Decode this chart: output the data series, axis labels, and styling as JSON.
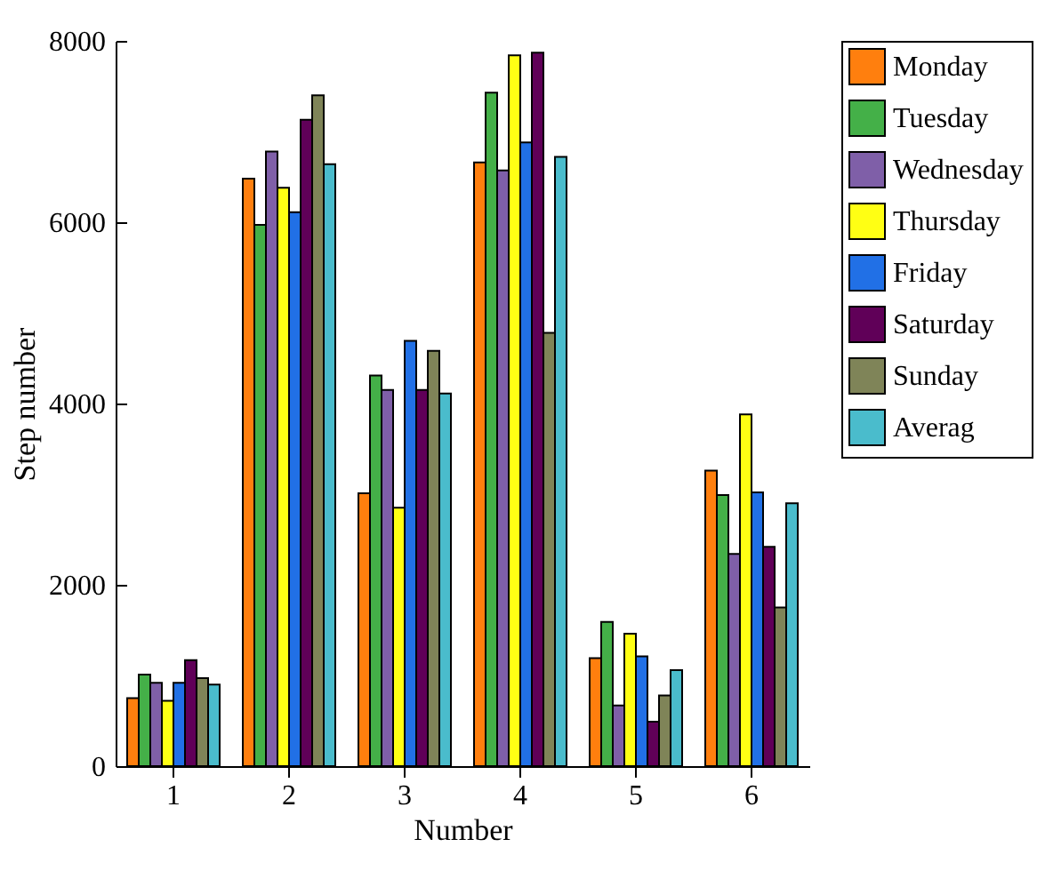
{
  "chart_data": {
    "type": "bar",
    "xlabel": "Number",
    "ylabel": "Step number",
    "categories": [
      "1",
      "2",
      "3",
      "4",
      "5",
      "6"
    ],
    "ylim": [
      0,
      8000
    ],
    "yticks": [
      0,
      2000,
      4000,
      6000,
      8000
    ],
    "grid": false,
    "legend": "right",
    "series": [
      {
        "name": "Monday",
        "color": "#ff7f0e",
        "values": [
          750,
          6480,
          3010,
          6660,
          1190,
          3260
        ]
      },
      {
        "name": "Tuesday",
        "color": "#44b048",
        "values": [
          1010,
          5970,
          4310,
          7430,
          1590,
          2990
        ]
      },
      {
        "name": "Wednesday",
        "color": "#7f5fa8",
        "values": [
          920,
          6780,
          4150,
          6570,
          670,
          2340
        ]
      },
      {
        "name": "Thursday",
        "color": "#ffff14",
        "values": [
          720,
          6380,
          2850,
          7840,
          1460,
          3880
        ]
      },
      {
        "name": "Friday",
        "color": "#2170e6",
        "values": [
          920,
          6110,
          4690,
          6880,
          1210,
          3020
        ]
      },
      {
        "name": "Saturday",
        "color": "#600058",
        "values": [
          1170,
          7130,
          4150,
          7870,
          490,
          2420
        ]
      },
      {
        "name": "Sunday",
        "color": "#7f8458",
        "values": [
          970,
          7400,
          4580,
          4780,
          780,
          1750
        ]
      },
      {
        "name": "Averag",
        "color": "#4abccc",
        "values": [
          900,
          6640,
          4110,
          6720,
          1060,
          2900
        ]
      }
    ]
  }
}
